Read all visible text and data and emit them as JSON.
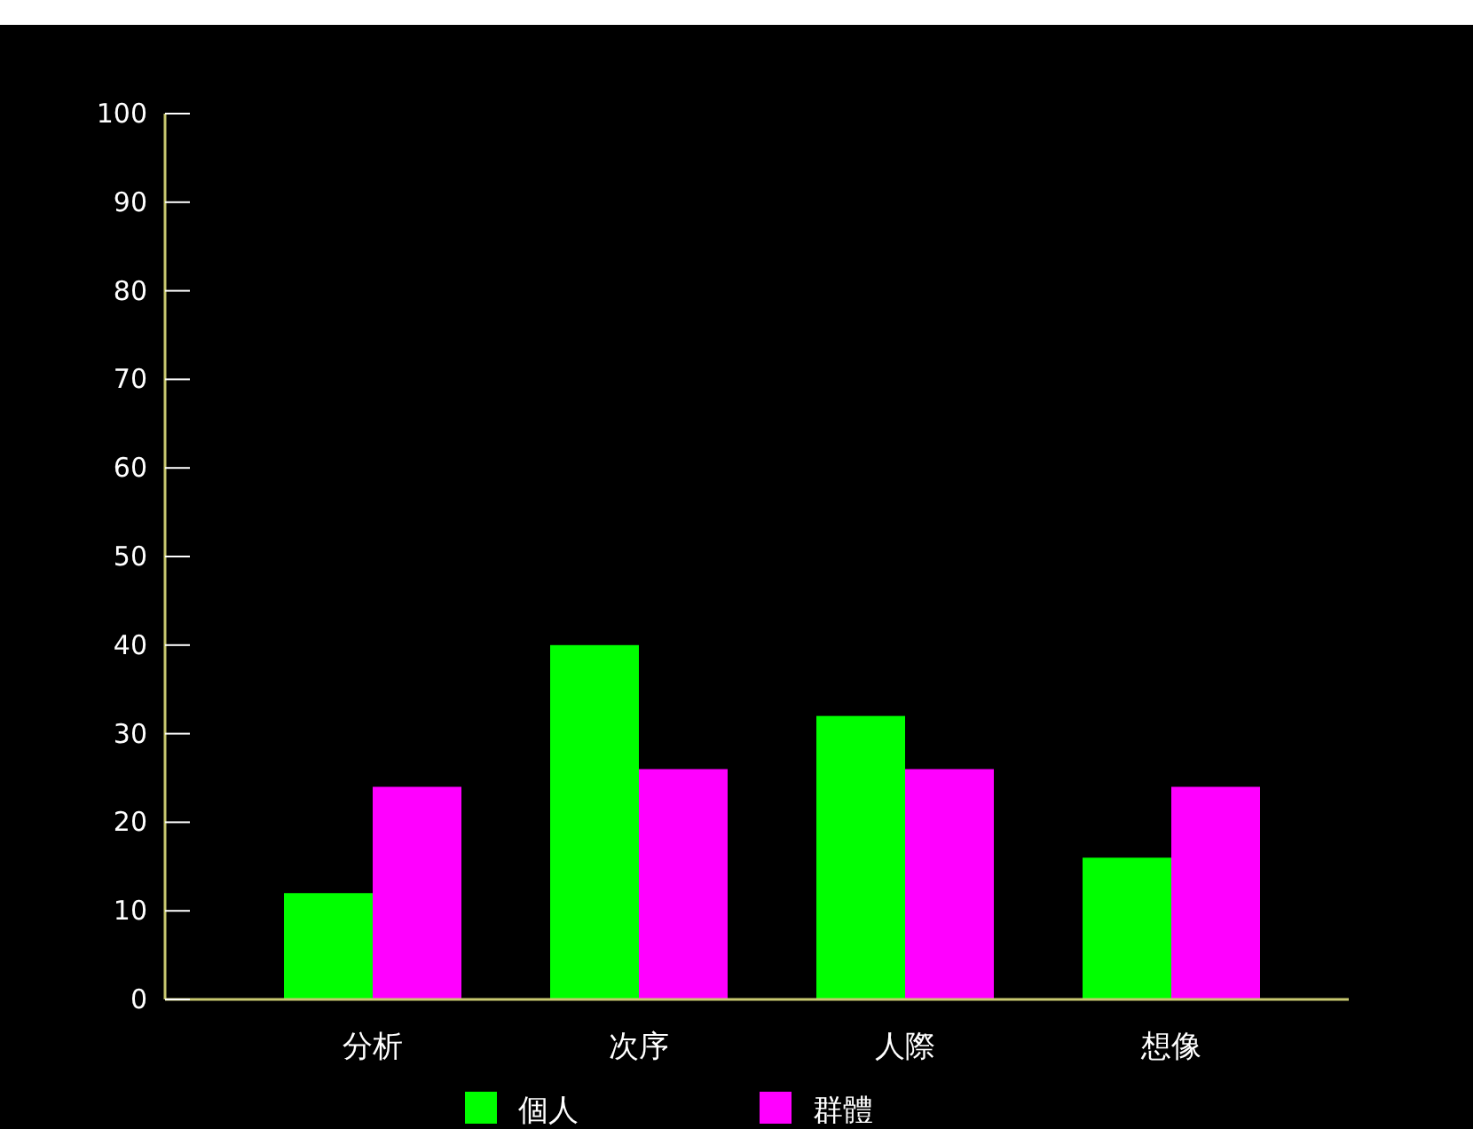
{
  "chart_data": {
    "type": "bar",
    "categories": [
      "分析",
      "次序",
      "人際",
      "想像"
    ],
    "series": [
      {
        "name": "個人",
        "color": "#00ff00",
        "values": [
          12,
          40,
          32,
          16
        ]
      },
      {
        "name": "群體",
        "color": "#ff00ff",
        "values": [
          24,
          26,
          26,
          24
        ]
      }
    ],
    "ylim": [
      0,
      100
    ],
    "yticks": [
      0,
      10,
      20,
      30,
      40,
      50,
      60,
      70,
      80,
      90,
      100
    ],
    "grid": false,
    "legend": "bottom"
  }
}
